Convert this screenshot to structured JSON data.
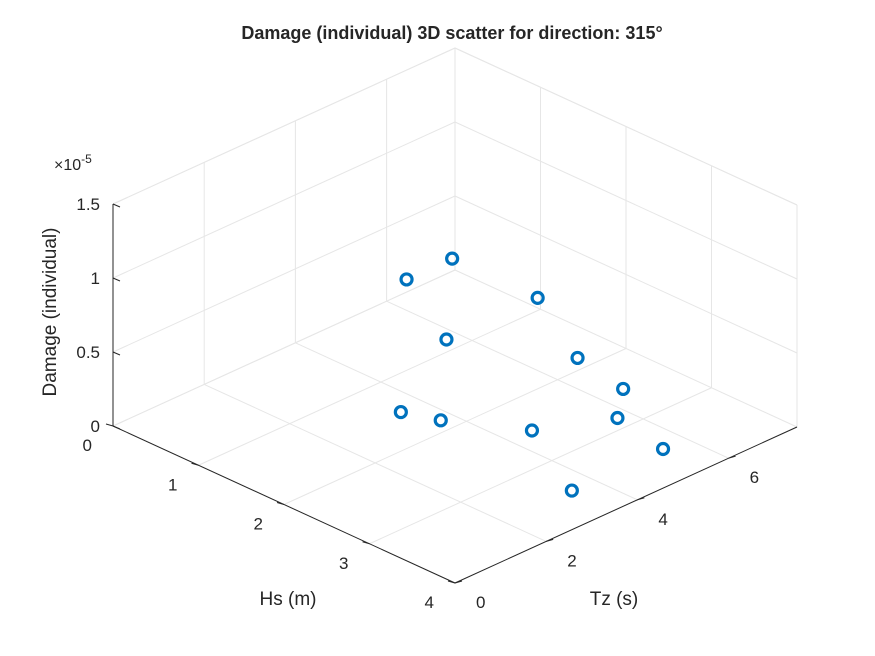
{
  "chart_data": {
    "type": "scatter",
    "title": "Damage (individual) 3D scatter for direction: 315°",
    "xlabel": "Hs (m)",
    "ylabel": "Tz (s)",
    "zlabel": "Damage (individual)",
    "exponent_label": "×10",
    "exponent_power": "-5",
    "xlim": [
      0,
      4
    ],
    "ylim": [
      0,
      7.5
    ],
    "zlim": [
      0,
      1.5
    ],
    "xticks": [
      0,
      1,
      2,
      3,
      4
    ],
    "yticks": [
      0,
      2,
      4,
      6
    ],
    "zticks": [
      0,
      0.5,
      1,
      1.5
    ],
    "grid": true,
    "series": [
      {
        "color": "#0072BD",
        "marker": "circle-open",
        "points": [
          {
            "x": 1.5,
            "y": 3.5,
            "z": 0
          },
          {
            "x": 2.5,
            "y": 4.5,
            "z": 0
          },
          {
            "x": 2.5,
            "y": 6.5,
            "z": 0
          },
          {
            "x": 3.5,
            "y": 3.5,
            "z": 0
          },
          {
            "x": 3.5,
            "y": 5.5,
            "z": 0
          },
          {
            "x": 0.5,
            "y": 5.5,
            "z": 0.35
          },
          {
            "x": 0.5,
            "y": 6.5,
            "z": 0.35
          },
          {
            "x": 1.5,
            "y": 4.5,
            "z": 0.35
          },
          {
            "x": 1.5,
            "y": 6.5,
            "z": 0.35
          },
          {
            "x": 2.5,
            "y": 2.5,
            "z": 0.35
          },
          {
            "x": 2.5,
            "y": 5.5,
            "z": 0.35
          },
          {
            "x": 3.5,
            "y": 4.5,
            "z": 0.35
          }
        ]
      }
    ]
  }
}
